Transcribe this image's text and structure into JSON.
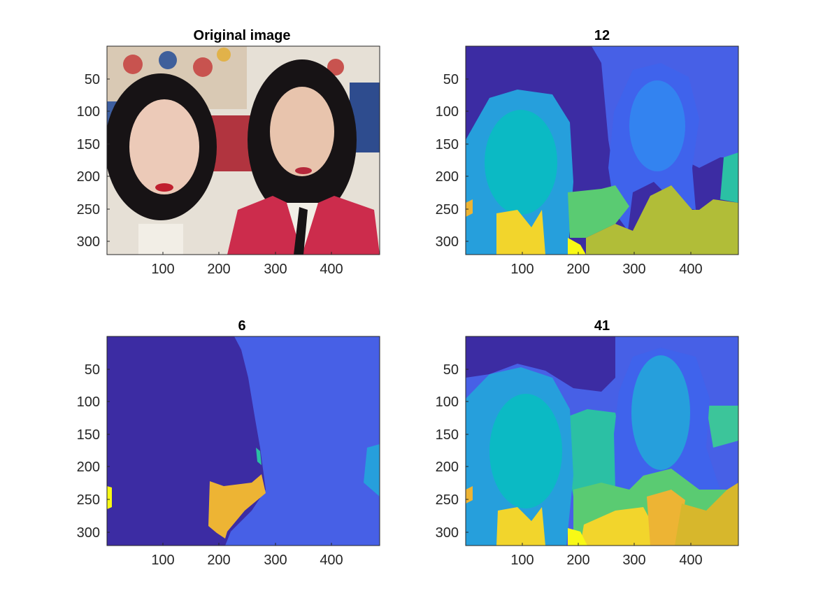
{
  "figure": {
    "panels": [
      {
        "title": "Original image",
        "content": "photo",
        "x_ticks": [
          "100",
          "200",
          "300",
          "400"
        ],
        "y_ticks": [
          "50",
          "100",
          "150",
          "200",
          "250",
          "300"
        ]
      },
      {
        "title": "12",
        "content": "segmentation",
        "x_ticks": [
          "100",
          "200",
          "300",
          "400"
        ],
        "y_ticks": [
          "50",
          "100",
          "150",
          "200",
          "250",
          "300"
        ]
      },
      {
        "title": "6",
        "content": "segmentation",
        "x_ticks": [
          "100",
          "200",
          "300",
          "400"
        ],
        "y_ticks": [
          "50",
          "100",
          "150",
          "200",
          "250",
          "300"
        ]
      },
      {
        "title": "41",
        "content": "segmentation",
        "x_ticks": [
          "100",
          "200",
          "300",
          "400"
        ],
        "y_ticks": [
          "50",
          "100",
          "150",
          "200",
          "250",
          "300"
        ]
      }
    ],
    "colors": {
      "purple": "#3c2ca3",
      "dark_blue": "#4760e6",
      "blue": "#3383f0",
      "light_blue": "#269fdc",
      "cyan": "#0bbac4",
      "teal": "#2bc0a4",
      "green": "#5acb72",
      "olive": "#b1bd38",
      "yellow": "#f2d52c",
      "bright_yellow": "#f8f915",
      "orange": "#edb434",
      "photo_skin": "#eccab8",
      "photo_hair": "#171315",
      "photo_red": "#cc2c4c",
      "photo_white": "#f2eee6",
      "axis": "#262626"
    }
  }
}
